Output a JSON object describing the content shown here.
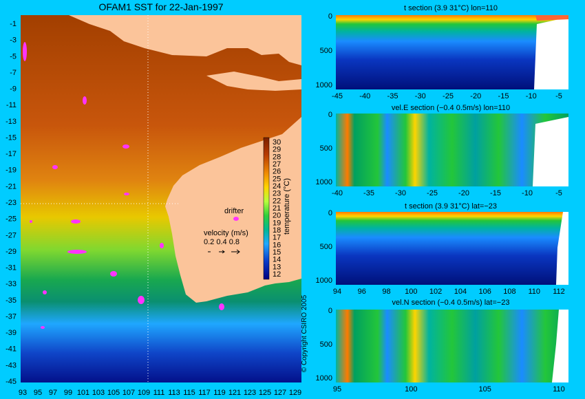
{
  "colors": {
    "background": "#00ccff",
    "land": "#fbc49a",
    "drifter": "#ff33ff"
  },
  "main_title": "OFAM1 SST for 22-Jan-1997",
  "copyright": "© Copyright CSIRO 2005",
  "drifter_label": "drifter",
  "velocity_legend": {
    "title": "velocity (m/s)",
    "values": "0.2 0.4 0.8"
  },
  "colorbar": {
    "label": "temperature (°C)",
    "ticks": [
      "30",
      "29",
      "28",
      "27",
      "26",
      "25",
      "24",
      "23",
      "22",
      "21",
      "20",
      "19",
      "18",
      "17",
      "16",
      "15",
      "14",
      "13",
      "12"
    ]
  },
  "map": {
    "x_ticks": [
      "93",
      "95",
      "97",
      "99",
      "101",
      "103",
      "105",
      "107",
      "109",
      "111",
      "113",
      "115",
      "117",
      "119",
      "121",
      "123",
      "125",
      "127",
      "129"
    ],
    "y_ticks": [
      "-1",
      "-3",
      "-5",
      "-7",
      "-9",
      "-11",
      "-13",
      "-15",
      "-17",
      "-19",
      "-21",
      "-23",
      "-25",
      "-27",
      "-29",
      "-31",
      "-33",
      "-35",
      "-37",
      "-39",
      "-41",
      "-43",
      "-45"
    ]
  },
  "chart_data": [
    {
      "type": "heatmap",
      "title": "OFAM1 SST for 22-Jan-1997",
      "x_range": [
        93,
        130
      ],
      "y_range": [
        -45,
        0
      ],
      "colorbar_label": "temperature (°C)",
      "colorbar_range": [
        12,
        31
      ]
    },
    {
      "type": "heatmap",
      "title": "t section (3.9     31°C) lon=110",
      "x_ticks": [
        "-45",
        "-40",
        "-35",
        "-30",
        "-25",
        "-20",
        "-15",
        "-10",
        "-5"
      ],
      "y_ticks": [
        "0",
        "500",
        "1000"
      ]
    },
    {
      "type": "heatmap",
      "title": "vel.E section (−0.4     0.5m/s) lon=110",
      "x_ticks": [
        "-40",
        "-35",
        "-30",
        "-25",
        "-20",
        "-15",
        "-10",
        "-5"
      ],
      "y_ticks": [
        "0",
        "500",
        "1000"
      ]
    },
    {
      "type": "heatmap",
      "title": "t section (3.9     31°C) lat=−23",
      "x_ticks": [
        "94",
        "96",
        "98",
        "100",
        "102",
        "104",
        "106",
        "108",
        "110",
        "112"
      ],
      "y_ticks": [
        "0",
        "500",
        "1000"
      ]
    },
    {
      "type": "heatmap",
      "title": "vel.N section (−0.4     0.5m/s) lat=−23",
      "x_ticks": [
        "95",
        "100",
        "105",
        "110"
      ],
      "y_ticks": [
        "0",
        "500",
        "1000"
      ]
    }
  ]
}
